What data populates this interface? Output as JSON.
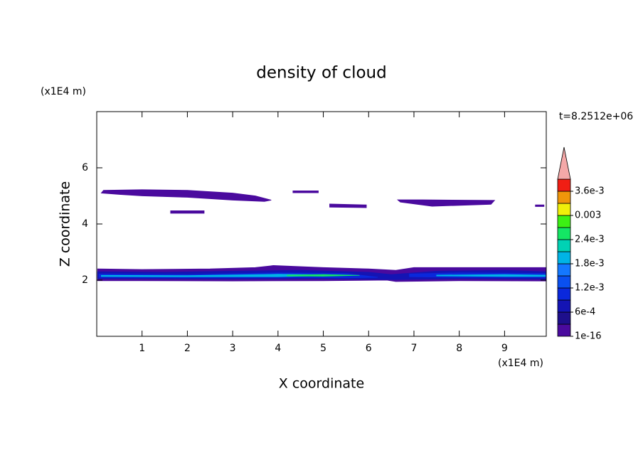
{
  "chart_data": {
    "type": "contour",
    "title": "density of cloud",
    "x_label": "X coordinate",
    "y_label": "Z coordinate",
    "x_unit": "(x1E4 m)",
    "y_unit": "(x1E4 m)",
    "time_label": "t=8.2512e+06",
    "xlim": [
      0,
      9.92
    ],
    "ylim": [
      0,
      8
    ],
    "xticks": [
      1,
      2,
      3,
      4,
      5,
      6,
      7,
      8,
      9
    ],
    "yticks": [
      2,
      4,
      6
    ],
    "colorbar": {
      "boundaries": [
        1e-16,
        0.0003,
        0.0006,
        0.0009,
        0.0012,
        0.0015,
        0.0018,
        0.0021,
        0.0024,
        0.0027,
        0.003,
        0.0033,
        0.0036,
        0.0039
      ],
      "colors": [
        "#4a0a9e",
        "#1e0f8c",
        "#1414b4",
        "#0a28dc",
        "#0a50f0",
        "#1478ff",
        "#00b4e6",
        "#00d2b4",
        "#14e664",
        "#3cf014",
        "#f0f00a",
        "#f0960a",
        "#f01e14"
      ],
      "extend": "max",
      "extend_color": "#f4a8a8",
      "ticks": [
        {
          "value": 1e-16,
          "label": "1e-16"
        },
        {
          "value": 0.0006,
          "label": "6e-4"
        },
        {
          "value": 0.0012,
          "label": "1.2e-3"
        },
        {
          "value": 0.0018,
          "label": "1.8e-3"
        },
        {
          "value": 0.0024,
          "label": "2.4e-3"
        },
        0.003,
        {
          "value": 0.0036,
          "label": "3.6e-3"
        }
      ]
    },
    "regions": [
      {
        "value": 0.0001,
        "x": [
          0.1,
          0.15,
          1.0,
          2.0,
          3.0,
          3.5,
          3.85,
          3.7,
          3.0,
          2.0,
          1.0,
          0.5
        ],
        "z": [
          5.1,
          5.2,
          5.22,
          5.2,
          5.1,
          5.0,
          4.85,
          4.8,
          4.85,
          4.95,
          5.0,
          5.05
        ]
      },
      {
        "value": 0.0001,
        "x": [
          1.63,
          2.37,
          2.37,
          1.63
        ],
        "z": [
          4.47,
          4.47,
          4.38,
          4.38
        ]
      },
      {
        "value": 0.0001,
        "x": [
          4.33,
          4.89,
          4.89,
          4.33
        ],
        "z": [
          5.18,
          5.18,
          5.11,
          5.11
        ]
      },
      {
        "value": 0.0001,
        "x": [
          5.14,
          5.95,
          5.95,
          5.14
        ],
        "z": [
          4.71,
          4.68,
          4.58,
          4.6
        ]
      },
      {
        "value": 0.0001,
        "x": [
          6.64,
          7.2,
          8.78,
          8.7,
          7.4,
          6.7
        ],
        "z": [
          4.86,
          4.86,
          4.84,
          4.7,
          4.63,
          4.78
        ]
      },
      {
        "value": 0.0001,
        "x": [
          9.68,
          9.87,
          9.87,
          9.68
        ],
        "z": [
          4.68,
          4.68,
          4.62,
          4.62
        ]
      },
      {
        "value": 0.0001,
        "x": [
          0.02,
          1.0,
          2.5,
          3.5,
          3.9,
          5.0,
          6.0,
          6.6,
          7.0,
          8.0,
          9.92,
          9.92,
          8.0,
          6.6,
          6.4,
          5.0,
          3.0,
          1.0,
          0.02
        ],
        "z": [
          2.4,
          2.38,
          2.4,
          2.45,
          2.52,
          2.45,
          2.4,
          2.35,
          2.45,
          2.45,
          2.45,
          1.97,
          1.98,
          1.95,
          2.0,
          1.98,
          1.97,
          1.98,
          1.98
        ]
      },
      {
        "value": 0.0007,
        "x": [
          0.02,
          1.5,
          3.0,
          4.5,
          6.0,
          6.5,
          7.5,
          9.0,
          9.92,
          9.92,
          8.0,
          6.6,
          5.0,
          3.0,
          1.0,
          0.02
        ],
        "z": [
          2.3,
          2.28,
          2.32,
          2.35,
          2.28,
          2.2,
          2.32,
          2.35,
          2.3,
          2.03,
          2.05,
          2.02,
          2.05,
          2.04,
          2.05,
          2.05
        ]
      },
      {
        "value": 0.0011,
        "x": [
          0.05,
          2.0,
          4.0,
          5.5,
          6.2,
          5.5,
          4.0,
          2.0,
          0.05
        ],
        "z": [
          2.22,
          2.2,
          2.26,
          2.24,
          2.1,
          2.08,
          2.1,
          2.09,
          2.1
        ]
      },
      {
        "value": 0.0011,
        "x": [
          6.9,
          8.0,
          9.9,
          9.9,
          8.0,
          6.9
        ],
        "z": [
          2.22,
          2.26,
          2.24,
          2.1,
          2.1,
          2.12
        ]
      },
      {
        "value": 0.0018,
        "x": [
          0.1,
          2.0,
          4.0,
          5.5,
          4.0,
          2.0,
          0.1
        ],
        "z": [
          2.17,
          2.16,
          2.21,
          2.18,
          2.12,
          2.12,
          2.13
        ]
      },
      {
        "value": 0.0018,
        "x": [
          7.5,
          9.0,
          9.9,
          9.9,
          9.0,
          7.5
        ],
        "z": [
          2.18,
          2.2,
          2.18,
          2.13,
          2.13,
          2.15
        ]
      },
      {
        "value": 0.0025,
        "x": [
          4.2,
          5.0,
          5.8,
          5.0,
          4.2
        ],
        "z": [
          2.18,
          2.2,
          2.17,
          2.14,
          2.15
        ]
      }
    ]
  }
}
